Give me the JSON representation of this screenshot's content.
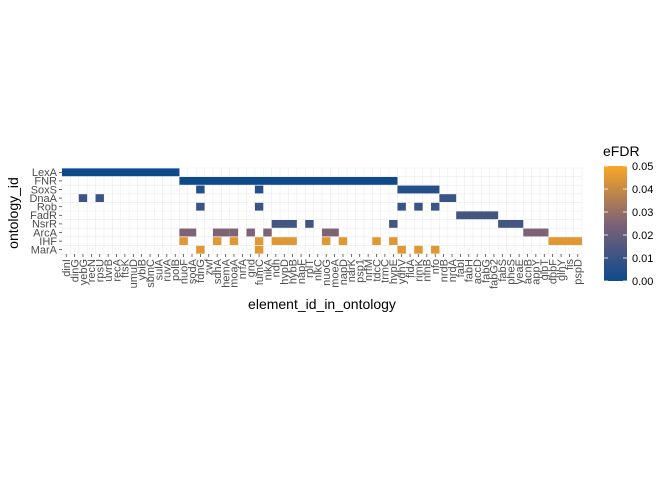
{
  "chart_data": {
    "type": "heatmap",
    "xlabel": "element_id_in_ontology",
    "ylabel": "ontology_id",
    "grid": true,
    "legend_placement": "right",
    "x_categories": [
      "dinI",
      "dinG",
      "yebG",
      "recN",
      "rpsU",
      "uvrB",
      "recA",
      "ftsK",
      "umuD",
      "ybiB",
      "sbmC",
      "sulA",
      "ruvA",
      "polB",
      "nuoF",
      "sodA",
      "fdnG",
      "zwf",
      "sdhA",
      "hemA",
      "moaA",
      "nrfA",
      "gnd",
      "fumC",
      "nikA",
      "ndh",
      "hypD",
      "hybB",
      "napF",
      "rplT",
      "nikC",
      "nuoG",
      "moeA",
      "napD",
      "narK",
      "psp1",
      "nrfM",
      "tdcC",
      "trmC",
      "hypE",
      "ydhV",
      "fldA",
      "rimK",
      "nfnB",
      "nfo",
      "nrdB",
      "nrdA",
      "fabI",
      "fabH",
      "accD",
      "fabG",
      "fabG2",
      "fabS",
      "pheS",
      "yeaE",
      "acnB",
      "appY",
      "glpT",
      "dppF",
      "glnY",
      "fis",
      "pspD"
    ],
    "y_categories": [
      "LexA",
      "FNR",
      "SoxS",
      "DnaA",
      "Rob",
      "FadR",
      "NsrR",
      "ArcA",
      "IHF",
      "MarA"
    ],
    "legend": {
      "title": "eFDR",
      "ticks": [
        "0.05",
        "0.04",
        "0.03",
        "0.02",
        "0.01",
        "0.00"
      ],
      "range": [
        0,
        0.05
      ],
      "color_low": "#0D4A8C",
      "color_mid": "#7E6276",
      "color_high": "#F8A624"
    },
    "cells": [
      {
        "y": "LexA",
        "from": 0,
        "to": 13,
        "value": 0.0
      },
      {
        "y": "FNR",
        "from": 14,
        "to": 39,
        "value": 0.0
      },
      {
        "y": "SoxS",
        "x": "fdnG",
        "value": 0.005
      },
      {
        "y": "SoxS",
        "x": "fumC",
        "value": 0.005
      },
      {
        "y": "SoxS",
        "from": 40,
        "to": 44,
        "value": 0.005
      },
      {
        "y": "DnaA",
        "x": "yebG",
        "value": 0.01
      },
      {
        "y": "DnaA",
        "x": "rpsU",
        "value": 0.01
      },
      {
        "y": "DnaA",
        "from": 45,
        "to": 46,
        "value": 0.01
      },
      {
        "y": "Rob",
        "x": "fdnG",
        "value": 0.01
      },
      {
        "y": "Rob",
        "x": "fumC",
        "value": 0.01
      },
      {
        "y": "Rob",
        "x": "ydhV",
        "value": 0.01
      },
      {
        "y": "Rob",
        "x": "rimK",
        "value": 0.01
      },
      {
        "y": "Rob",
        "x": "nfo",
        "value": 0.01
      },
      {
        "y": "FadR",
        "from": 47,
        "to": 51,
        "value": 0.012
      },
      {
        "y": "NsrR",
        "from": 25,
        "to": 27,
        "value": 0.012
      },
      {
        "y": "NsrR",
        "x": "rplT",
        "value": 0.012
      },
      {
        "y": "NsrR",
        "x": "hypE",
        "value": 0.012
      },
      {
        "y": "NsrR",
        "from": 52,
        "to": 54,
        "value": 0.012
      },
      {
        "y": "ArcA",
        "from": 14,
        "to": 15,
        "value": 0.025
      },
      {
        "y": "ArcA",
        "from": 18,
        "to": 19,
        "value": 0.025
      },
      {
        "y": "ArcA",
        "x": "moaA",
        "value": 0.025
      },
      {
        "y": "ArcA",
        "x": "gnd",
        "value": 0.025
      },
      {
        "y": "ArcA",
        "x": "nikA",
        "value": 0.025
      },
      {
        "y": "ArcA",
        "from": 31,
        "to": 32,
        "value": 0.025
      },
      {
        "y": "ArcA",
        "from": 55,
        "to": 57,
        "value": 0.025
      },
      {
        "y": "IHF",
        "x": "nuoF",
        "value": 0.045
      },
      {
        "y": "IHF",
        "x": "sdhA",
        "value": 0.045
      },
      {
        "y": "IHF",
        "x": "moaA",
        "value": 0.045
      },
      {
        "y": "IHF",
        "x": "fumC",
        "value": 0.045
      },
      {
        "y": "IHF",
        "from": 25,
        "to": 27,
        "value": 0.045
      },
      {
        "y": "IHF",
        "x": "nuoG",
        "value": 0.045
      },
      {
        "y": "IHF",
        "x": "napD",
        "value": 0.045
      },
      {
        "y": "IHF",
        "x": "tdcC",
        "value": 0.045
      },
      {
        "y": "IHF",
        "x": "hypE",
        "value": 0.045
      },
      {
        "y": "IHF",
        "from": 58,
        "to": 61,
        "value": 0.045
      },
      {
        "y": "MarA",
        "x": "fdnG",
        "value": 0.045
      },
      {
        "y": "MarA",
        "x": "fumC",
        "value": 0.045
      },
      {
        "y": "MarA",
        "x": "ydhV",
        "value": 0.045
      },
      {
        "y": "MarA",
        "x": "rimK",
        "value": 0.045
      },
      {
        "y": "MarA",
        "x": "nfo",
        "value": 0.045
      }
    ]
  }
}
